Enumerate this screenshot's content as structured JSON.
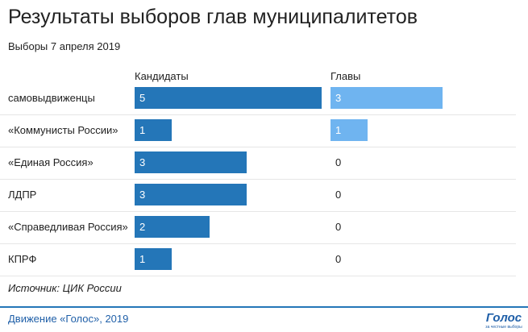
{
  "header": {
    "title": "Результаты выборов глав муниципалитетов",
    "subtitle": "Выборы 7 апреля 2019"
  },
  "columns": {
    "candidates": "Кандидаты",
    "heads": "Главы"
  },
  "source": "Источник: ЦИК России",
  "footer": {
    "text": "Движение «Голос», 2019",
    "logo_text": "Голос",
    "logo_subtext": "за честные выборы"
  },
  "colors": {
    "candidates": "#2476b8",
    "heads": "#6fb4f0",
    "footer": "#2476b8"
  },
  "chart_data": {
    "type": "bar",
    "title": "Результаты выборов глав муниципалитетов",
    "subtitle": "Выборы 7 апреля 2019",
    "categories": [
      "самовыдвиженцы",
      "«Коммунисты России»",
      "«Единая Россия»",
      "ЛДПР",
      "«Справедливая Россия»",
      "КПРФ"
    ],
    "series": [
      {
        "name": "Кандидаты",
        "values": [
          5,
          1,
          3,
          3,
          2,
          1
        ]
      },
      {
        "name": "Главы",
        "values": [
          3,
          1,
          0,
          0,
          0,
          0
        ]
      }
    ],
    "xlim": [
      0,
      5
    ]
  }
}
